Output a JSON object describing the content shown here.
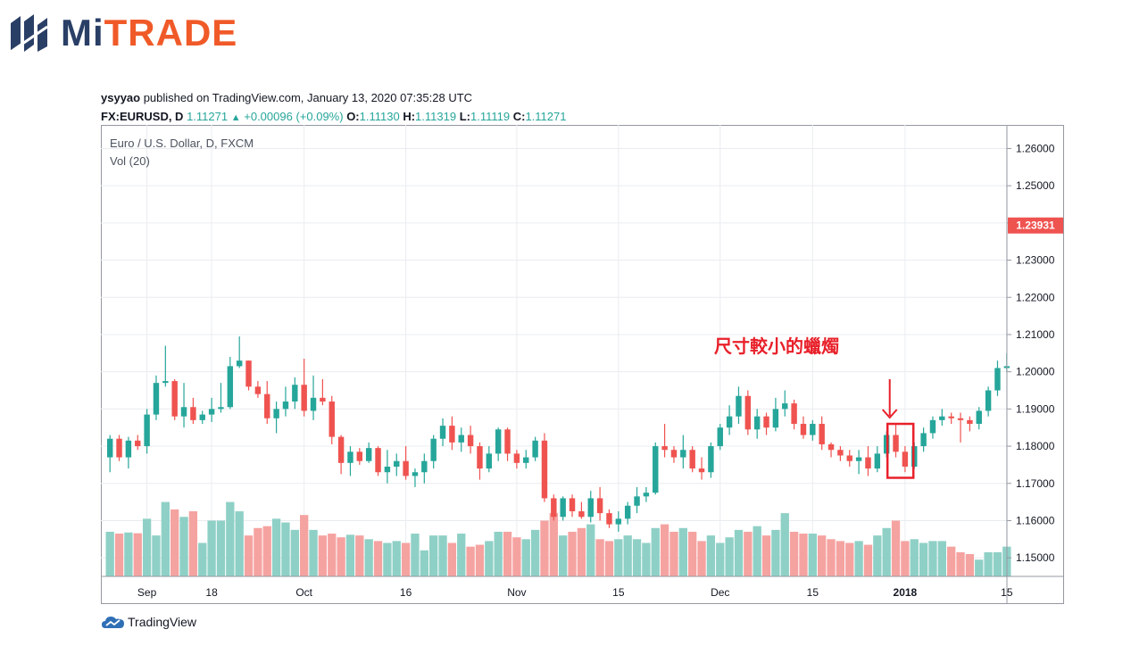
{
  "brand": {
    "name_part1": "Mi",
    "name_part2": "TRADE",
    "accent": "#f05a28",
    "dark": "#2a3f66"
  },
  "header": {
    "publisher": "ysyyao",
    "published_text": " published on TradingView.com, January 13, 2020 07:35:28 UTC",
    "symbol": "FX:EURUSD, D",
    "last": "1.11271",
    "change_icon": "triangle-up-icon",
    "change": "+0.00096 (+0.09%)",
    "o_label": "O:",
    "o": "1.11130",
    "h_label": "H:",
    "h": "1.11319",
    "l_label": "L:",
    "l": "1.11119",
    "c_label": "C:",
    "c": "1.11271"
  },
  "legend": {
    "series": "Euro / U.S. Dollar, D, FXCM",
    "volume": "Vol (20)"
  },
  "annotation": {
    "text": "尺寸較小的蠟燭",
    "color": "#e8202a"
  },
  "footer": {
    "text": "TradingView",
    "icon": "tradingview-cloud-icon"
  },
  "chart_data": {
    "type": "candlestick",
    "y_axis_position": "right",
    "ylim": [
      1.145,
      1.2635
    ],
    "y_ticks": [
      "1.26000",
      "1.25000",
      "1.24000",
      "1.23000",
      "1.22000",
      "1.21000",
      "1.20000",
      "1.19000",
      "1.18000",
      "1.17000",
      "1.16000",
      "1.15000"
    ],
    "last_price_label": "1.23931",
    "x_ticks": [
      {
        "label": "Sep",
        "bar": 4
      },
      {
        "label": "18",
        "bar": 11
      },
      {
        "label": "Oct",
        "bar": 21
      },
      {
        "label": "16",
        "bar": 32
      },
      {
        "label": "Nov",
        "bar": 44
      },
      {
        "label": "15",
        "bar": 55
      },
      {
        "label": "Dec",
        "bar": 66
      },
      {
        "label": "15",
        "bar": 76
      },
      {
        "label": "2018",
        "bar": 86
      },
      {
        "label": "15",
        "bar": 97
      }
    ],
    "colors": {
      "up": "#26a69a",
      "down": "#ef5350",
      "vol_up": "#8fd0c6",
      "vol_down": "#f5a3a1",
      "grid": "#e9ecf0"
    },
    "grid": true,
    "candles": [
      {
        "o": 1.177,
        "h": 1.183,
        "l": 1.173,
        "c": 1.182,
        "v": 1.157
      },
      {
        "o": 1.182,
        "h": 1.183,
        "l": 1.176,
        "c": 1.177,
        "v": 1.1565
      },
      {
        "o": 1.177,
        "h": 1.1825,
        "l": 1.174,
        "c": 1.1815,
        "v": 1.1568
      },
      {
        "o": 1.1815,
        "h": 1.183,
        "l": 1.179,
        "c": 1.18,
        "v": 1.1566
      },
      {
        "o": 1.18,
        "h": 1.19,
        "l": 1.178,
        "c": 1.1885,
        "v": 1.1605
      },
      {
        "o": 1.1885,
        "h": 1.199,
        "l": 1.187,
        "c": 1.197,
        "v": 1.156
      },
      {
        "o": 1.197,
        "h": 1.207,
        "l": 1.196,
        "c": 1.1975,
        "v": 1.165
      },
      {
        "o": 1.1975,
        "h": 1.198,
        "l": 1.187,
        "c": 1.188,
        "v": 1.163
      },
      {
        "o": 1.188,
        "h": 1.197,
        "l": 1.185,
        "c": 1.1905,
        "v": 1.161
      },
      {
        "o": 1.1905,
        "h": 1.193,
        "l": 1.186,
        "c": 1.187,
        "v": 1.1625
      },
      {
        "o": 1.187,
        "h": 1.1895,
        "l": 1.186,
        "c": 1.1885,
        "v": 1.154
      },
      {
        "o": 1.1885,
        "h": 1.193,
        "l": 1.1865,
        "c": 1.19,
        "v": 1.16
      },
      {
        "o": 1.19,
        "h": 1.197,
        "l": 1.189,
        "c": 1.1905,
        "v": 1.16
      },
      {
        "o": 1.1905,
        "h": 1.204,
        "l": 1.19,
        "c": 1.2015,
        "v": 1.165
      },
      {
        "o": 1.2015,
        "h": 1.2095,
        "l": 1.201,
        "c": 1.203,
        "v": 1.1625
      },
      {
        "o": 1.203,
        "h": 1.203,
        "l": 1.195,
        "c": 1.196,
        "v": 1.156
      },
      {
        "o": 1.196,
        "h": 1.1975,
        "l": 1.193,
        "c": 1.194,
        "v": 1.158
      },
      {
        "o": 1.194,
        "h": 1.1975,
        "l": 1.186,
        "c": 1.1875,
        "v": 1.1585
      },
      {
        "o": 1.1875,
        "h": 1.192,
        "l": 1.1835,
        "c": 1.19,
        "v": 1.1605
      },
      {
        "o": 1.19,
        "h": 1.196,
        "l": 1.188,
        "c": 1.192,
        "v": 1.1595
      },
      {
        "o": 1.192,
        "h": 1.1985,
        "l": 1.19,
        "c": 1.1965,
        "v": 1.1575
      },
      {
        "o": 1.1965,
        "h": 1.2035,
        "l": 1.188,
        "c": 1.1895,
        "v": 1.1615
      },
      {
        "o": 1.1895,
        "h": 1.199,
        "l": 1.187,
        "c": 1.193,
        "v": 1.1575
      },
      {
        "o": 1.193,
        "h": 1.198,
        "l": 1.191,
        "c": 1.192,
        "v": 1.156
      },
      {
        "o": 1.192,
        "h": 1.1935,
        "l": 1.1805,
        "c": 1.1825,
        "v": 1.1565
      },
      {
        "o": 1.1825,
        "h": 1.183,
        "l": 1.1725,
        "c": 1.1755,
        "v": 1.1555
      },
      {
        "o": 1.1755,
        "h": 1.18,
        "l": 1.172,
        "c": 1.1785,
        "v": 1.1562
      },
      {
        "o": 1.1785,
        "h": 1.1795,
        "l": 1.175,
        "c": 1.176,
        "v": 1.156
      },
      {
        "o": 1.176,
        "h": 1.181,
        "l": 1.1755,
        "c": 1.1795,
        "v": 1.155
      },
      {
        "o": 1.1795,
        "h": 1.18,
        "l": 1.172,
        "c": 1.173,
        "v": 1.1545
      },
      {
        "o": 1.173,
        "h": 1.179,
        "l": 1.17,
        "c": 1.1745,
        "v": 1.154
      },
      {
        "o": 1.1745,
        "h": 1.178,
        "l": 1.172,
        "c": 1.176,
        "v": 1.1545
      },
      {
        "o": 1.176,
        "h": 1.18,
        "l": 1.171,
        "c": 1.172,
        "v": 1.154
      },
      {
        "o": 1.172,
        "h": 1.174,
        "l": 1.169,
        "c": 1.173,
        "v": 1.1565
      },
      {
        "o": 1.173,
        "h": 1.178,
        "l": 1.17,
        "c": 1.176,
        "v": 1.152
      },
      {
        "o": 1.176,
        "h": 1.183,
        "l": 1.174,
        "c": 1.182,
        "v": 1.156
      },
      {
        "o": 1.182,
        "h": 1.1875,
        "l": 1.18,
        "c": 1.1855,
        "v": 1.156
      },
      {
        "o": 1.1855,
        "h": 1.188,
        "l": 1.179,
        "c": 1.181,
        "v": 1.154
      },
      {
        "o": 1.181,
        "h": 1.185,
        "l": 1.1785,
        "c": 1.183,
        "v": 1.1565
      },
      {
        "o": 1.183,
        "h": 1.1855,
        "l": 1.178,
        "c": 1.18,
        "v": 1.153
      },
      {
        "o": 1.18,
        "h": 1.181,
        "l": 1.171,
        "c": 1.174,
        "v": 1.1535
      },
      {
        "o": 1.174,
        "h": 1.18,
        "l": 1.173,
        "c": 1.178,
        "v": 1.1545
      },
      {
        "o": 1.178,
        "h": 1.185,
        "l": 1.176,
        "c": 1.1845,
        "v": 1.157
      },
      {
        "o": 1.1845,
        "h": 1.185,
        "l": 1.176,
        "c": 1.178,
        "v": 1.157
      },
      {
        "o": 1.178,
        "h": 1.179,
        "l": 1.174,
        "c": 1.1755,
        "v": 1.1555
      },
      {
        "o": 1.1755,
        "h": 1.179,
        "l": 1.174,
        "c": 1.177,
        "v": 1.155
      },
      {
        "o": 1.177,
        "h": 1.1825,
        "l": 1.176,
        "c": 1.1815,
        "v": 1.1575
      },
      {
        "o": 1.1815,
        "h": 1.1835,
        "l": 1.165,
        "c": 1.166,
        "v": 1.16
      },
      {
        "o": 1.166,
        "h": 1.167,
        "l": 1.16,
        "c": 1.161,
        "v": 1.162
      },
      {
        "o": 1.161,
        "h": 1.1665,
        "l": 1.16,
        "c": 1.166,
        "v": 1.156
      },
      {
        "o": 1.166,
        "h": 1.167,
        "l": 1.161,
        "c": 1.1625,
        "v": 1.157
      },
      {
        "o": 1.1625,
        "h": 1.165,
        "l": 1.1605,
        "c": 1.161,
        "v": 1.158
      },
      {
        "o": 1.161,
        "h": 1.168,
        "l": 1.1595,
        "c": 1.166,
        "v": 1.159
      },
      {
        "o": 1.166,
        "h": 1.169,
        "l": 1.16,
        "c": 1.162,
        "v": 1.155
      },
      {
        "o": 1.162,
        "h": 1.163,
        "l": 1.158,
        "c": 1.159,
        "v": 1.1545
      },
      {
        "o": 1.159,
        "h": 1.1625,
        "l": 1.157,
        "c": 1.1605,
        "v": 1.155
      },
      {
        "o": 1.1605,
        "h": 1.165,
        "l": 1.159,
        "c": 1.164,
        "v": 1.156
      },
      {
        "o": 1.164,
        "h": 1.169,
        "l": 1.162,
        "c": 1.1665,
        "v": 1.155
      },
      {
        "o": 1.1665,
        "h": 1.169,
        "l": 1.165,
        "c": 1.1675,
        "v": 1.154
      },
      {
        "o": 1.1675,
        "h": 1.181,
        "l": 1.167,
        "c": 1.18,
        "v": 1.158
      },
      {
        "o": 1.18,
        "h": 1.186,
        "l": 1.177,
        "c": 1.179,
        "v": 1.159
      },
      {
        "o": 1.179,
        "h": 1.18,
        "l": 1.1755,
        "c": 1.177,
        "v": 1.157
      },
      {
        "o": 1.177,
        "h": 1.183,
        "l": 1.174,
        "c": 1.179,
        "v": 1.158
      },
      {
        "o": 1.179,
        "h": 1.18,
        "l": 1.173,
        "c": 1.174,
        "v": 1.157
      },
      {
        "o": 1.174,
        "h": 1.177,
        "l": 1.171,
        "c": 1.173,
        "v": 1.1545
      },
      {
        "o": 1.173,
        "h": 1.181,
        "l": 1.1715,
        "c": 1.18,
        "v": 1.156
      },
      {
        "o": 1.18,
        "h": 1.186,
        "l": 1.179,
        "c": 1.185,
        "v": 1.154
      },
      {
        "o": 1.185,
        "h": 1.191,
        "l": 1.183,
        "c": 1.188,
        "v": 1.1555
      },
      {
        "o": 1.188,
        "h": 1.196,
        "l": 1.186,
        "c": 1.1935,
        "v": 1.1575
      },
      {
        "o": 1.1935,
        "h": 1.195,
        "l": 1.183,
        "c": 1.1845,
        "v": 1.157
      },
      {
        "o": 1.1845,
        "h": 1.19,
        "l": 1.182,
        "c": 1.188,
        "v": 1.1585
      },
      {
        "o": 1.188,
        "h": 1.189,
        "l": 1.183,
        "c": 1.185,
        "v": 1.156
      },
      {
        "o": 1.185,
        "h": 1.193,
        "l": 1.184,
        "c": 1.19,
        "v": 1.1575
      },
      {
        "o": 1.19,
        "h": 1.195,
        "l": 1.188,
        "c": 1.1915,
        "v": 1.162
      },
      {
        "o": 1.1915,
        "h": 1.1925,
        "l": 1.1845,
        "c": 1.186,
        "v": 1.157
      },
      {
        "o": 1.186,
        "h": 1.188,
        "l": 1.182,
        "c": 1.183,
        "v": 1.1565
      },
      {
        "o": 1.183,
        "h": 1.187,
        "l": 1.1815,
        "c": 1.186,
        "v": 1.1565
      },
      {
        "o": 1.186,
        "h": 1.188,
        "l": 1.179,
        "c": 1.1805,
        "v": 1.156
      },
      {
        "o": 1.1805,
        "h": 1.181,
        "l": 1.177,
        "c": 1.179,
        "v": 1.155
      },
      {
        "o": 1.179,
        "h": 1.18,
        "l": 1.176,
        "c": 1.1775,
        "v": 1.1545
      },
      {
        "o": 1.1775,
        "h": 1.179,
        "l": 1.1745,
        "c": 1.176,
        "v": 1.154
      },
      {
        "o": 1.176,
        "h": 1.179,
        "l": 1.1725,
        "c": 1.177,
        "v": 1.1545
      },
      {
        "o": 1.177,
        "h": 1.18,
        "l": 1.172,
        "c": 1.174,
        "v": 1.1535
      },
      {
        "o": 1.174,
        "h": 1.18,
        "l": 1.173,
        "c": 1.178,
        "v": 1.156
      },
      {
        "o": 1.178,
        "h": 1.184,
        "l": 1.177,
        "c": 1.183,
        "v": 1.158
      },
      {
        "o": 1.183,
        "h": 1.186,
        "l": 1.177,
        "c": 1.1785,
        "v": 1.16
      },
      {
        "o": 1.1785,
        "h": 1.18,
        "l": 1.173,
        "c": 1.1745,
        "v": 1.1545
      },
      {
        "o": 1.1745,
        "h": 1.181,
        "l": 1.174,
        "c": 1.18,
        "v": 1.155
      },
      {
        "o": 1.18,
        "h": 1.185,
        "l": 1.1785,
        "c": 1.1835,
        "v": 1.154
      },
      {
        "o": 1.1835,
        "h": 1.188,
        "l": 1.182,
        "c": 1.187,
        "v": 1.1545
      },
      {
        "o": 1.187,
        "h": 1.19,
        "l": 1.1855,
        "c": 1.188,
        "v": 1.1545
      },
      {
        "o": 1.188,
        "h": 1.189,
        "l": 1.186,
        "c": 1.1875,
        "v": 1.153
      },
      {
        "o": 1.1875,
        "h": 1.189,
        "l": 1.181,
        "c": 1.187,
        "v": 1.1515
      },
      {
        "o": 1.187,
        "h": 1.188,
        "l": 1.184,
        "c": 1.186,
        "v": 1.151
      },
      {
        "o": 1.186,
        "h": 1.1905,
        "l": 1.1845,
        "c": 1.1895,
        "v": 1.1495
      },
      {
        "o": 1.1895,
        "h": 1.196,
        "l": 1.188,
        "c": 1.195,
        "v": 1.1515
      },
      {
        "o": 1.195,
        "h": 1.203,
        "l": 1.1935,
        "c": 1.201,
        "v": 1.1515
      },
      {
        "o": 1.201,
        "h": 1.205,
        "l": 1.2,
        "c": 1.2015,
        "v": 1.153
      }
    ]
  }
}
